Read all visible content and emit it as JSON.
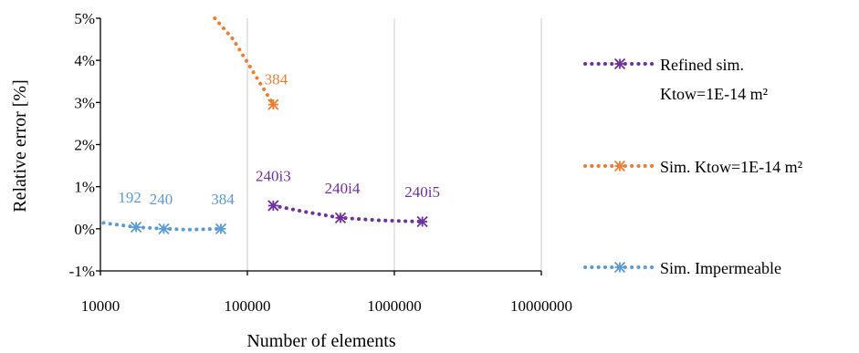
{
  "chart_data": {
    "type": "scatter",
    "xlabel": "Number of elements",
    "ylabel": "Relative error [%]",
    "x_scale": "log",
    "xlim": [
      10000,
      10000000
    ],
    "ylim": [
      -1,
      5
    ],
    "x_ticks": [
      "10000",
      "100000",
      "1000000",
      "10000000"
    ],
    "y_ticks": [
      "-1%",
      "0%",
      "1%",
      "2%",
      "3%",
      "4%",
      "5%"
    ],
    "grid": "vertical",
    "legend_position": "right",
    "series": [
      {
        "name": "Refined sim. Ktow=1E-14 m²",
        "legend_lines": [
          "Refined sim.",
          "Ktow=1E-14 m²"
        ],
        "color": "#7030a0",
        "marker": "asterisk",
        "line_style": "dotted",
        "points": [
          {
            "x": 150000,
            "y": 0.55,
            "label": "240i3"
          },
          {
            "x": 430000,
            "y": 0.26,
            "label": "240i4"
          },
          {
            "x": 1550000,
            "y": 0.17,
            "label": "240i5"
          }
        ],
        "trend": [
          [
            150000,
            0.55
          ],
          [
            250000,
            0.4
          ],
          [
            430000,
            0.26
          ],
          [
            800000,
            0.2
          ],
          [
            1550000,
            0.17
          ]
        ]
      },
      {
        "name": "Sim. Ktow=1E-14 m²",
        "legend_lines": [
          "Sim. Ktow=1E-14 m²"
        ],
        "color": "#ed7d31",
        "marker": "asterisk",
        "line_style": "dotted",
        "points": [
          {
            "x": 150000,
            "y": 2.95,
            "label": "384"
          }
        ],
        "trend": [
          [
            60000,
            5.0
          ],
          [
            80000,
            4.5
          ],
          [
            100000,
            3.95
          ],
          [
            125000,
            3.4
          ],
          [
            150000,
            2.95
          ]
        ]
      },
      {
        "name": "Sim. Impermeable",
        "legend_lines": [
          "Sim. Impermeable"
        ],
        "color": "#5b9bd5",
        "marker": "asterisk",
        "line_style": "dotted",
        "points": [
          {
            "x": 17500,
            "y": 0.04,
            "label": "192"
          },
          {
            "x": 27000,
            "y": 0.0,
            "label": "240"
          },
          {
            "x": 66000,
            "y": 0.0,
            "label": "384"
          }
        ],
        "trend": [
          [
            10500,
            0.14
          ],
          [
            17500,
            0.04
          ],
          [
            27000,
            0.0
          ],
          [
            40000,
            -0.02
          ],
          [
            66000,
            0.0
          ]
        ]
      }
    ]
  }
}
